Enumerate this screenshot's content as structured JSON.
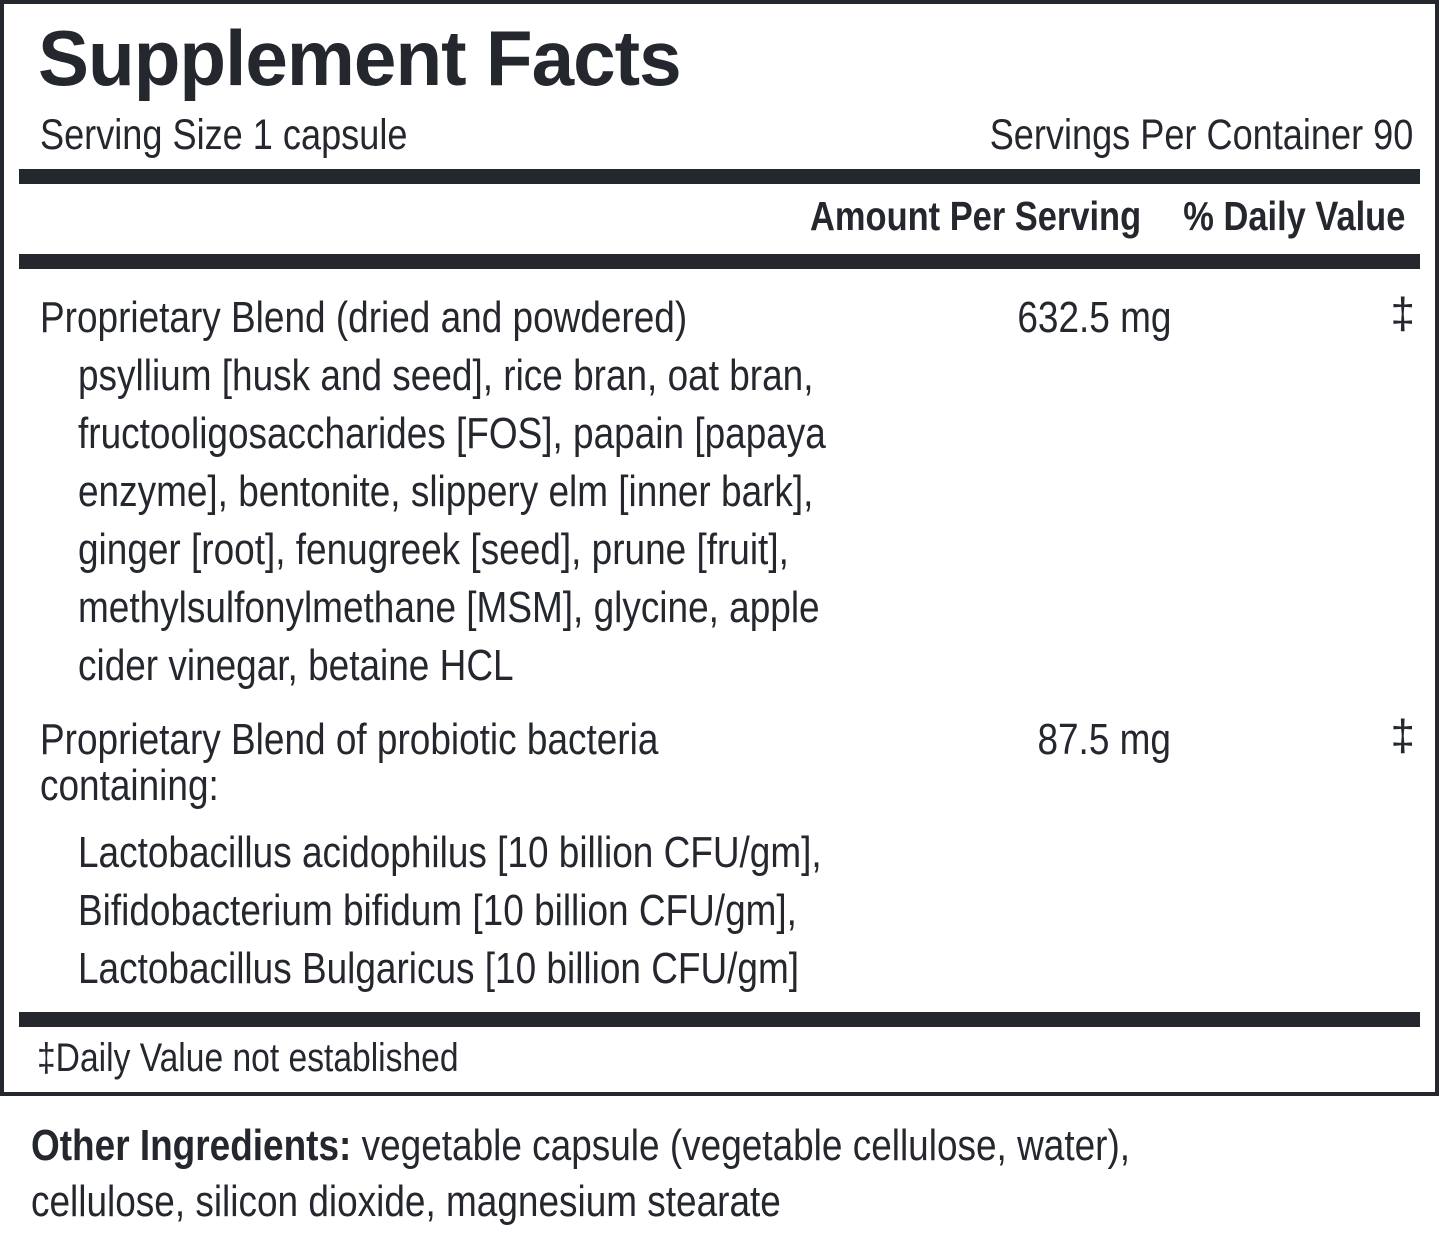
{
  "title": "Supplement Facts",
  "serving_size": "Serving Size  1 capsule",
  "servings_per_container": "Servings Per Container  90",
  "headers": {
    "amount": "Amount Per Serving",
    "daily_value": "% Daily Value"
  },
  "rows": [
    {
      "name": "Proprietary Blend (dried and powdered)",
      "amount": "632.5 mg",
      "dv": "‡",
      "details": [
        "psyllium [husk and seed], rice bran, oat bran,",
        "fructooligosaccharides [FOS], papain [papaya",
        "enzyme], bentonite, slippery elm [inner bark],",
        "ginger [root], fenugreek [seed], prune [fruit],",
        "methylsulfonylmethane [MSM], glycine, apple",
        "cider vinegar, betaine HCL"
      ]
    },
    {
      "name_lines": [
        "Proprietary Blend of probiotic bacteria",
        "containing:"
      ],
      "amount": "87.5 mg",
      "dv": "‡",
      "details": [
        "Lactobacillus acidophilus [10 billion CFU/gm],",
        "Bifidobacterium bifidum [10 billion CFU/gm],",
        "Lactobacillus Bulgaricus [10 billion CFU/gm]"
      ]
    }
  ],
  "footnote": "‡Daily Value not established",
  "other_ingredients": {
    "label": "Other Ingredients:",
    "text_line1": " vegetable capsule (vegetable cellulose, water),",
    "text_line2": "cellulose, silicon dioxide, magnesium stearate"
  }
}
